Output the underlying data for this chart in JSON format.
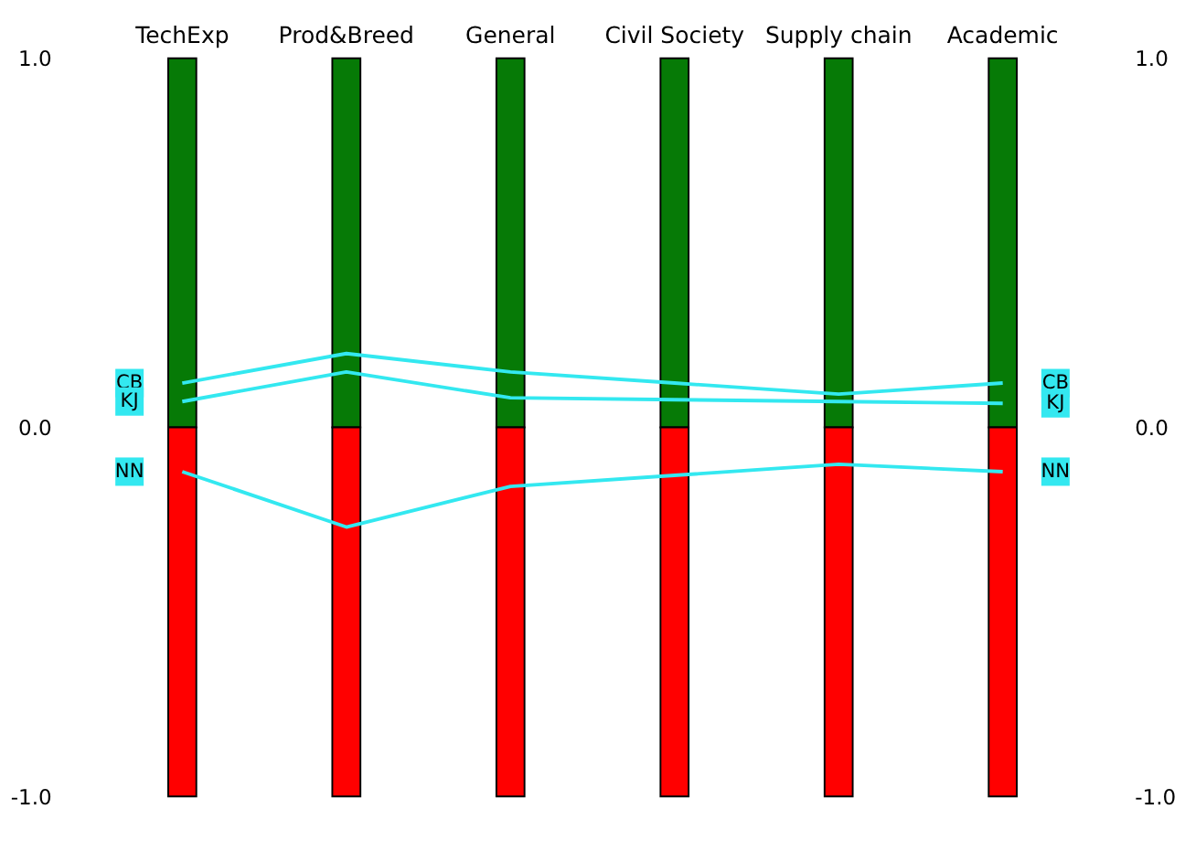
{
  "chart_data": {
    "type": "line",
    "categories": [
      "TechExp",
      "Prod&Breed",
      "General",
      "Civil Society",
      "Supply chain",
      "Academic"
    ],
    "series": [
      {
        "type": "bar",
        "color": "#067a06",
        "values": [
          1,
          1,
          1,
          1,
          1,
          1
        ]
      },
      {
        "type": "bar",
        "color": "#ff0000",
        "values": [
          -1,
          -1,
          -1,
          -1,
          -1,
          -1
        ]
      },
      {
        "name": "CB",
        "color": "#33e8f0",
        "values": [
          0.12,
          0.2,
          0.15,
          0.12,
          0.09,
          0.12
        ]
      },
      {
        "name": "KJ",
        "color": "#33e8f0",
        "values": [
          0.07,
          0.15,
          0.08,
          0.075,
          0.07,
          0.065
        ]
      },
      {
        "name": "NN",
        "color": "#33e8f0",
        "values": [
          -0.12,
          -0.27,
          -0.16,
          -0.13,
          -0.1,
          -0.12
        ]
      }
    ],
    "ylim": [
      -1,
      1
    ],
    "yticks": [
      {
        "value": -1,
        "label": "-1.0"
      },
      {
        "value": 0,
        "label": "0.0"
      },
      {
        "value": 1,
        "label": "1.0"
      }
    ],
    "y2lim": [
      -1,
      1
    ],
    "y2ticks": [
      {
        "value": -1,
        "label": "-1.0"
      },
      {
        "value": 0,
        "label": "0.0"
      },
      {
        "value": 1,
        "label": "1.0"
      }
    ],
    "stacked": true,
    "grid": false,
    "legend": "right",
    "marker": "none",
    "line_style": "solid"
  }
}
